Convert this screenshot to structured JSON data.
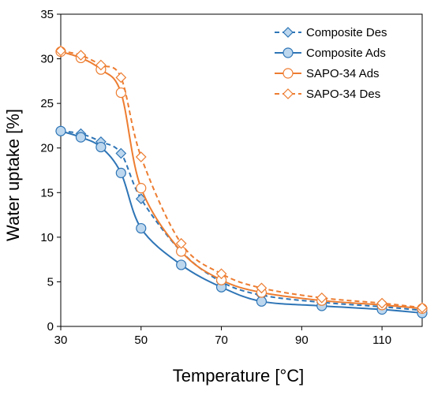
{
  "chart_data": {
    "type": "line",
    "title": "",
    "xlabel": "Temperature [°C]",
    "ylabel": "Water uptake [%]",
    "xlim": [
      30,
      120
    ],
    "ylim": [
      0,
      35
    ],
    "xticks": [
      "30",
      "50",
      "70",
      "90",
      "110"
    ],
    "yticks": [
      "0",
      "5",
      "10",
      "15",
      "20",
      "25",
      "30",
      "35"
    ],
    "grid": false,
    "legend_position": "top-right",
    "series": [
      {
        "name": "Composite Des",
        "color": "#2E75B6",
        "dash": "dashed",
        "marker": "diamond",
        "marker_fill": "#BDD7EE",
        "x": [
          30,
          35,
          40,
          45,
          50,
          60,
          70,
          80,
          95,
          110,
          120
        ],
        "y": [
          21.9,
          21.6,
          20.7,
          19.4,
          14.3,
          8.4,
          5.0,
          3.5,
          2.7,
          2.2,
          1.8
        ]
      },
      {
        "name": "Composite Ads",
        "color": "#2E75B6",
        "dash": "solid",
        "marker": "circle",
        "marker_fill": "#BDD7EE",
        "x": [
          30,
          35,
          40,
          45,
          50,
          60,
          70,
          80,
          95,
          110,
          120
        ],
        "y": [
          21.9,
          21.2,
          20.1,
          17.2,
          11.0,
          6.9,
          4.4,
          2.8,
          2.3,
          1.9,
          1.5
        ]
      },
      {
        "name": "SAPO-34 Ads",
        "color": "#ED7D31",
        "dash": "solid",
        "marker": "circle",
        "marker_fill": "#ffffff",
        "x": [
          30,
          35,
          40,
          45,
          50,
          60,
          70,
          80,
          95,
          110,
          120
        ],
        "y": [
          30.8,
          30.1,
          28.8,
          26.2,
          15.5,
          8.4,
          5.2,
          3.8,
          2.9,
          2.4,
          2.0
        ]
      },
      {
        "name": "SAPO-34 Des",
        "color": "#ED7D31",
        "dash": "dashed",
        "marker": "diamond",
        "marker_fill": "#ffffff",
        "x": [
          30,
          35,
          40,
          45,
          50,
          60,
          70,
          80,
          95,
          110,
          120
        ],
        "y": [
          30.9,
          30.4,
          29.3,
          27.9,
          19.0,
          9.3,
          5.9,
          4.3,
          3.2,
          2.6,
          2.1
        ]
      }
    ]
  }
}
